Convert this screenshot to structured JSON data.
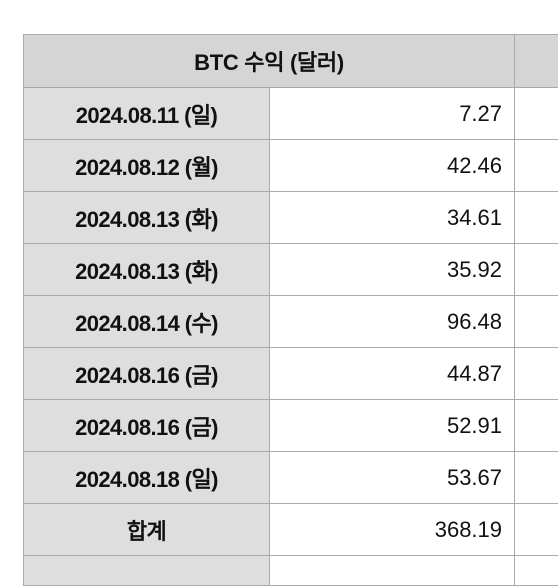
{
  "table": {
    "title": "BTC 수익 (달러)",
    "rows": [
      {
        "date": "2024.08.11 (일)",
        "value": "7.27"
      },
      {
        "date": "2024.08.12 (월)",
        "value": "42.46"
      },
      {
        "date": "2024.08.13 (화)",
        "value": "34.61"
      },
      {
        "date": "2024.08.13 (화)",
        "value": "35.92"
      },
      {
        "date": "2024.08.14 (수)",
        "value": "96.48"
      },
      {
        "date": "2024.08.16 (금)",
        "value": "44.87"
      },
      {
        "date": "2024.08.16 (금)",
        "value": "52.91"
      },
      {
        "date": "2024.08.18 (일)",
        "value": "53.67"
      }
    ],
    "total_label": "합계",
    "total_value": "368.19"
  },
  "colors": {
    "header_bg": "#d5d5d5",
    "label_bg": "#dedede",
    "grid": "#a9a9a9"
  }
}
